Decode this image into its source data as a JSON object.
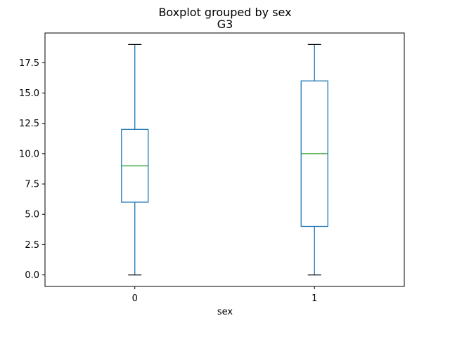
{
  "chart_data": {
    "type": "box",
    "suptitle": "Boxplot grouped by sex",
    "title": "G3",
    "xlabel": "sex",
    "ylabel": "",
    "categories": [
      "0",
      "1"
    ],
    "boxes": [
      {
        "category": "0",
        "whisker_low": 0,
        "q1": 6,
        "median": 9,
        "q3": 12,
        "whisker_high": 19
      },
      {
        "category": "1",
        "whisker_low": 0,
        "q1": 4,
        "median": 10,
        "q3": 16,
        "whisker_high": 19
      }
    ],
    "ylim": [
      -0.95,
      19.95
    ],
    "yticks": [
      0.0,
      2.5,
      5.0,
      7.5,
      10.0,
      12.5,
      15.0,
      17.5
    ],
    "ytick_labels": [
      "0.0",
      "2.5",
      "5.0",
      "7.5",
      "10.0",
      "12.5",
      "15.0",
      "17.5"
    ],
    "grid": false,
    "colors": {
      "box": "#1f77b4",
      "median": "#2ca02c",
      "caps": "#000000"
    }
  }
}
